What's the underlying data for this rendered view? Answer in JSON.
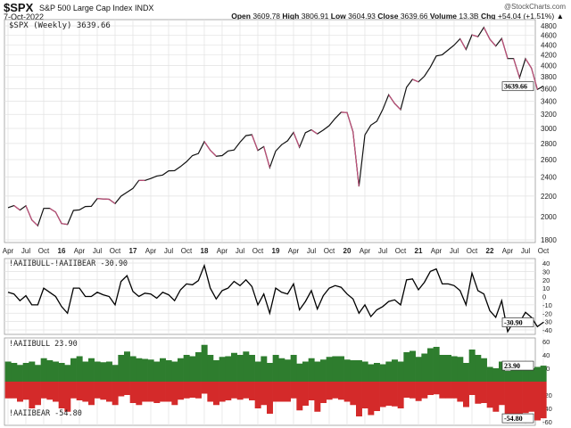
{
  "header": {
    "symbol": "$SPX",
    "name": "S&P 500 Large Cap Index",
    "exchange": "INDX",
    "date": "7-Oct-2022",
    "brand": "@StockCharts.com",
    "open_label": "Open",
    "open": "3609.78",
    "high_label": "High",
    "high": "3806.91",
    "low_label": "Low",
    "low": "3604.93",
    "close_label": "Close",
    "close": "3639.66",
    "volume_label": "Volume",
    "volume": "13.3B",
    "chg_label": "Chg",
    "chg": "+54.04 (+1.51%)",
    "up_arrow": "▲"
  },
  "chart_data": [
    {
      "type": "line",
      "title": "$SPX (Weekly) 3639.66",
      "scale": "log",
      "ylim": [
        1800,
        4800
      ],
      "yticks": [
        1800,
        2000,
        2200,
        2400,
        2600,
        2800,
        3000,
        3200,
        3400,
        3600,
        3800,
        4000,
        4200,
        4400,
        4600,
        4800
      ],
      "last_value_label": "3639.66",
      "x_start": "2015-04",
      "x_end": "2022-10",
      "x_step": "month",
      "xtick_labels": [
        "Apr",
        "Jul",
        "Oct",
        "16",
        "Apr",
        "Jul",
        "Oct",
        "17",
        "Apr",
        "Jul",
        "Oct",
        "18",
        "Apr",
        "Jul",
        "Oct",
        "19",
        "Apr",
        "Jul",
        "Oct",
        "20",
        "Apr",
        "Jul",
        "Oct",
        "21",
        "Apr",
        "Jul",
        "Oct",
        "22",
        "Apr",
        "Jul",
        "Oct"
      ],
      "values": [
        2086,
        2107,
        2063,
        2104,
        1972,
        1920,
        2079,
        2080,
        2044,
        1940,
        1932,
        2060,
        2065,
        2097,
        2099,
        2174,
        2171,
        2168,
        2126,
        2199,
        2239,
        2279,
        2364,
        2363,
        2384,
        2412,
        2423,
        2470,
        2472,
        2519,
        2575,
        2648,
        2674,
        2824,
        2714,
        2641,
        2648,
        2705,
        2718,
        2816,
        2902,
        2914,
        2712,
        2760,
        2507,
        2704,
        2784,
        2834,
        2946,
        2752,
        2942,
        2980,
        2926,
        2977,
        3038,
        3141,
        3231,
        3226,
        2954,
        2300,
        2912,
        3044,
        3100,
        3271,
        3500,
        3363,
        3270,
        3622,
        3756,
        3714,
        3811,
        3973,
        4181,
        4204,
        4298,
        4395,
        4523,
        4308,
        4605,
        4567,
        4766,
        4516,
        4374,
        4530,
        4132,
        4132,
        3785,
        4130,
        3955,
        3586,
        3640
      ],
      "grid": true,
      "color": "#111111",
      "down_color": "#c0507a"
    },
    {
      "type": "line",
      "title": "!AAIIBULL-!AAIIBEAR -30.90",
      "ylim": [
        -40,
        40
      ],
      "yticks": [
        40,
        30,
        20,
        10,
        0,
        -10,
        -20,
        -30,
        -40
      ],
      "last_value_label": "-30.90",
      "color": "#000000",
      "derived_from": "bull minus bear"
    },
    {
      "type": "bar",
      "title_bull": "!AAIIBULL 23.90",
      "title_bear": "!AAIIBEAR -54.80",
      "ylim": [
        -60,
        60
      ],
      "yticks": [
        60,
        40,
        20,
        0,
        -20,
        -40,
        -60
      ],
      "last_bull_label": "23.90",
      "last_bear_label": "-54.80",
      "bull_color": "#2e7d2e",
      "bear_color": "#d42a2a",
      "bull": [
        30,
        28,
        25,
        28,
        30,
        25,
        35,
        32,
        30,
        28,
        25,
        35,
        38,
        30,
        35,
        30,
        29,
        30,
        25,
        40,
        45,
        38,
        35,
        34,
        33,
        30,
        35,
        32,
        30,
        35,
        40,
        38,
        44,
        55,
        40,
        32,
        37,
        38,
        43,
        40,
        45,
        40,
        30,
        38,
        28,
        40,
        35,
        33,
        40,
        27,
        30,
        35,
        30,
        33,
        37,
        38,
        38,
        33,
        32,
        32,
        30,
        26,
        28,
        26,
        30,
        33,
        30,
        44,
        46,
        37,
        42,
        50,
        52,
        40,
        40,
        38,
        37,
        28,
        48,
        40,
        35,
        22,
        20,
        30,
        16,
        20,
        25,
        28,
        20,
        22,
        23.9
      ],
      "bear": [
        25,
        25,
        30,
        27,
        40,
        35,
        25,
        27,
        30,
        40,
        45,
        25,
        28,
        30,
        35,
        25,
        27,
        30,
        35,
        22,
        20,
        32,
        35,
        30,
        30,
        32,
        30,
        30,
        35,
        27,
        25,
        24,
        25,
        18,
        30,
        35,
        30,
        28,
        25,
        27,
        25,
        28,
        40,
        35,
        48,
        30,
        30,
        30,
        25,
        43,
        36,
        28,
        45,
        32,
        27,
        25,
        27,
        30,
        35,
        52,
        40,
        50,
        44,
        38,
        36,
        37,
        40,
        24,
        25,
        29,
        25,
        20,
        19,
        25,
        25,
        25,
        30,
        38,
        20,
        33,
        32,
        39,
        45,
        35,
        58,
        50,
        56,
        47,
        45,
        58,
        54.8
      ]
    }
  ]
}
